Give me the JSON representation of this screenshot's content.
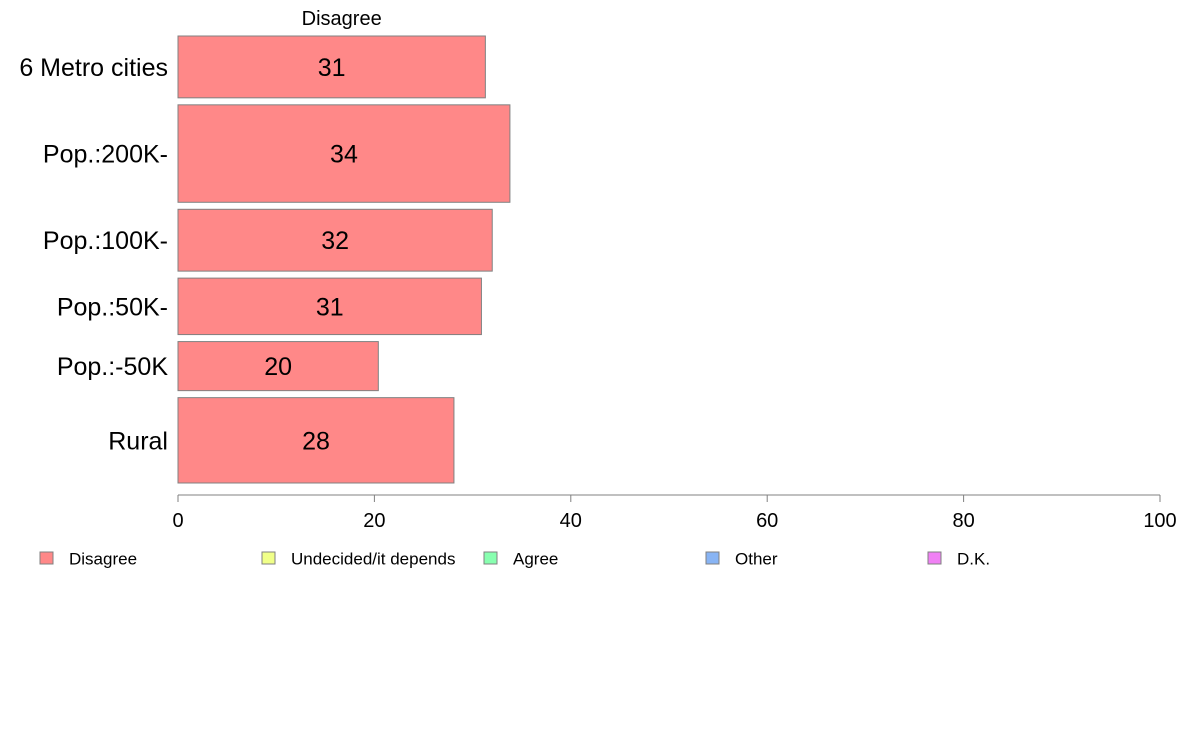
{
  "chart_data": {
    "type": "bar",
    "orientation": "horizontal",
    "panel_title": "Disagree",
    "categories": [
      "6 Metro cities",
      "Pop.:200K-",
      "Pop.:100K-",
      "Pop.:50K-",
      "Pop.:-50K",
      "Rural"
    ],
    "series": [
      {
        "name": "Disagree",
        "color": "#ff8888",
        "values": [
          31.3,
          33.8,
          32,
          30.9,
          20.4,
          28.1
        ],
        "labels": [
          "31",
          "34",
          "32",
          "31",
          "20",
          "28"
        ]
      }
    ],
    "category_weights": [
      0.92,
      1.45,
      0.92,
      0.84,
      0.73,
      1.27
    ],
    "xlim": [
      0,
      100
    ],
    "xticks": [
      0,
      20,
      40,
      60,
      80,
      100
    ],
    "grid": false,
    "legend_position": "bottom",
    "legend": [
      {
        "label": "Disagree",
        "color": "#ff8888"
      },
      {
        "label": "Undecided/it depends",
        "color": "#f0ff88"
      },
      {
        "label": "Agree",
        "color": "#88ffb0"
      },
      {
        "label": "Other",
        "color": "#88b4f4"
      },
      {
        "label": "D.K.",
        "color": "#f080f4"
      }
    ]
  }
}
